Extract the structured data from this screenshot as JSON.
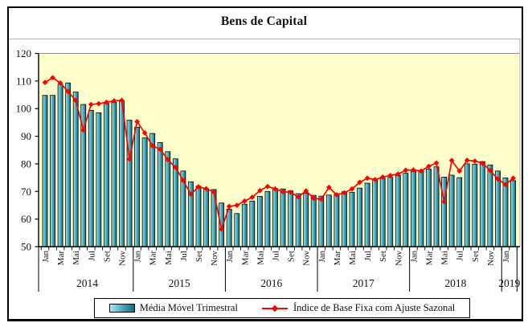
{
  "title": "Bens de Capital",
  "legend": {
    "bar_label": "Média Móvel Trimestral",
    "line_label": "Índice de Base Fixa com Ajuste Sazonal"
  },
  "colors": {
    "plot_bg": "#FFFFCC",
    "bar_gradient": [
      "#B5E6EF",
      "#55B9CC",
      "#0A7089"
    ],
    "bar_border": "#000000",
    "line": "#FF0000",
    "axis": "#000000",
    "frame_gray": "#ABABAB"
  },
  "chart_data": {
    "type": "bar+line",
    "title": "Bens de Capital",
    "ylim": [
      50,
      120
    ],
    "yticks": [
      120,
      110,
      100,
      90,
      80,
      70,
      60,
      50
    ],
    "grid": "none",
    "legend_position": "bottom",
    "x_start": "Jan/2014",
    "x_end": "Fev/2019",
    "years": [
      {
        "label": "2014",
        "months": 12
      },
      {
        "label": "2015",
        "months": 12
      },
      {
        "label": "2016",
        "months": 12
      },
      {
        "label": "2017",
        "months": 12
      },
      {
        "label": "2018",
        "months": 12
      },
      {
        "label": "2019",
        "months": 2
      }
    ],
    "month_label_pattern": [
      "Jan",
      "",
      "Mar",
      "",
      "Mai",
      "",
      "Jul",
      "",
      "Set",
      "",
      "Nov",
      ""
    ],
    "series": [
      {
        "name": "Média Móvel Trimestral",
        "type": "bar",
        "values": [
          104.8,
          104.8,
          108.8,
          109.3,
          106.0,
          101.5,
          99.4,
          98.5,
          101.9,
          102.3,
          102.7,
          95.8,
          93.3,
          89.4,
          91.0,
          87.7,
          84.4,
          81.8,
          77.4,
          73.5,
          71.9,
          70.9,
          70.7,
          65.8,
          63.6,
          62.0,
          65.4,
          66.5,
          68.2,
          70.0,
          71.0,
          70.9,
          70.2,
          69.2,
          69.3,
          68.6,
          68.3,
          68.7,
          69.2,
          69.9,
          69.7,
          71.2,
          73.0,
          74.1,
          74.8,
          75.1,
          75.8,
          76.6,
          77.3,
          77.6,
          78.1,
          78.9,
          75.2,
          75.9,
          75.0,
          80.0,
          79.9,
          80.8,
          79.6,
          77.4,
          74.9,
          73.9
        ]
      },
      {
        "name": "Índice de Base Fixa com Ajuste Sazonal",
        "type": "line",
        "marker": "diamond",
        "values": [
          109.5,
          111.2,
          109.3,
          106.2,
          103.0,
          92.2,
          101.5,
          101.8,
          102.3,
          102.8,
          103.0,
          81.7,
          95.3,
          91.2,
          86.5,
          85.3,
          81.5,
          78.7,
          74.0,
          69.0,
          71.7,
          71.0,
          69.8,
          56.3,
          64.6,
          65.0,
          66.5,
          67.9,
          70.3,
          71.8,
          70.9,
          69.9,
          69.7,
          68.0,
          70.2,
          67.5,
          67.2,
          71.5,
          68.8,
          69.5,
          70.9,
          73.3,
          74.8,
          74.3,
          75.2,
          75.8,
          76.3,
          77.7,
          77.8,
          77.4,
          79.1,
          80.3,
          66.3,
          81.2,
          77.4,
          81.3,
          81.0,
          80.2,
          77.6,
          74.5,
          72.5,
          74.8
        ]
      }
    ]
  }
}
